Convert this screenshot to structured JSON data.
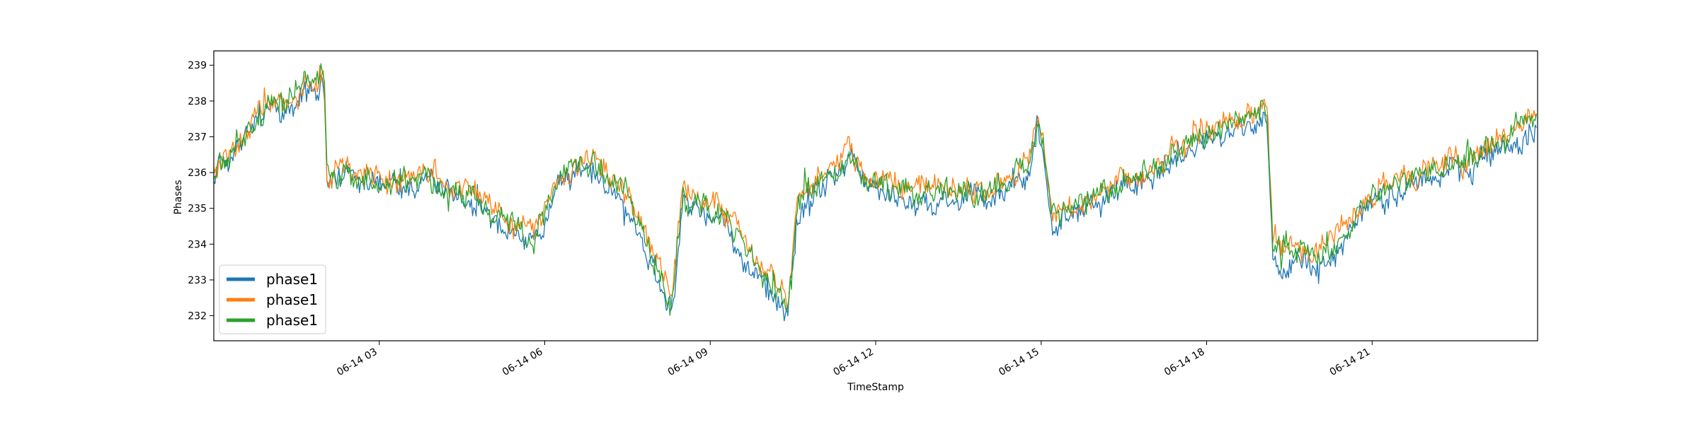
{
  "chart_data": {
    "type": "line",
    "title": "",
    "xlabel": "TimeStamp",
    "ylabel": "Phases",
    "x_range": [
      "06-14 00:00",
      "06-14 23:59"
    ],
    "x_ticks": [
      {
        "label": "06-14 03",
        "hour": 3
      },
      {
        "label": "06-14 06",
        "hour": 6
      },
      {
        "label": "06-14 09",
        "hour": 9
      },
      {
        "label": "06-14 12",
        "hour": 12
      },
      {
        "label": "06-14 15",
        "hour": 15
      },
      {
        "label": "06-14 18",
        "hour": 18
      },
      {
        "label": "06-14 21",
        "hour": 21
      }
    ],
    "ylim": [
      231.3,
      239.4
    ],
    "y_ticks": [
      232,
      233,
      234,
      235,
      236,
      237,
      238,
      239
    ],
    "grid": false,
    "legend_position": "lower-left",
    "x_hours": [
      0,
      0.5,
      1,
      1.5,
      2,
      2.05,
      3,
      4,
      5,
      5.8,
      6.2,
      6.8,
      7.5,
      8.3,
      8.5,
      9.2,
      10.4,
      10.6,
      11.5,
      12,
      13,
      14,
      14.8,
      14.95,
      15.2,
      16,
      17,
      17.8,
      18,
      19.1,
      19.2,
      20,
      20.5,
      21,
      22,
      23,
      23.99
    ],
    "series": [
      {
        "name": "phase1",
        "color": "#1f77b4",
        "values": [
          235.9,
          236.9,
          237.7,
          238.0,
          238.5,
          235.9,
          235.7,
          235.6,
          234.8,
          233.8,
          235.6,
          236.2,
          235.1,
          232.1,
          235.1,
          234.6,
          232.0,
          234.8,
          236.3,
          235.4,
          235.3,
          235.2,
          236.0,
          237.4,
          234.5,
          235.2,
          235.8,
          236.7,
          236.9,
          237.5,
          233.8,
          233.4,
          234.1,
          235.1,
          235.9,
          236.2,
          237.4
        ]
      },
      {
        "name": "phase1",
        "color": "#ff7f0e",
        "values": [
          236.1,
          237.1,
          237.9,
          238.2,
          238.7,
          236.1,
          235.9,
          235.8,
          235.1,
          234.2,
          235.9,
          236.5,
          235.4,
          232.5,
          235.5,
          235.0,
          232.4,
          235.2,
          236.6,
          235.7,
          235.6,
          235.5,
          236.3,
          237.7,
          234.8,
          235.5,
          236.1,
          237.0,
          237.2,
          237.8,
          234.1,
          233.7,
          234.5,
          235.4,
          236.2,
          236.5,
          237.8
        ]
      },
      {
        "name": "phase1",
        "color": "#2ca02c",
        "values": [
          236.0,
          237.0,
          237.8,
          238.2,
          238.6,
          236.0,
          235.8,
          235.7,
          235.0,
          234.0,
          235.8,
          236.4,
          235.3,
          232.3,
          235.3,
          234.8,
          232.2,
          235.0,
          236.5,
          235.6,
          235.5,
          235.4,
          236.2,
          237.6,
          234.7,
          235.4,
          236.0,
          236.9,
          237.1,
          237.7,
          234.0,
          233.6,
          234.3,
          235.3,
          236.1,
          236.4,
          237.6
        ]
      }
    ],
    "legend": [
      "phase1",
      "phase1",
      "phase1"
    ]
  }
}
